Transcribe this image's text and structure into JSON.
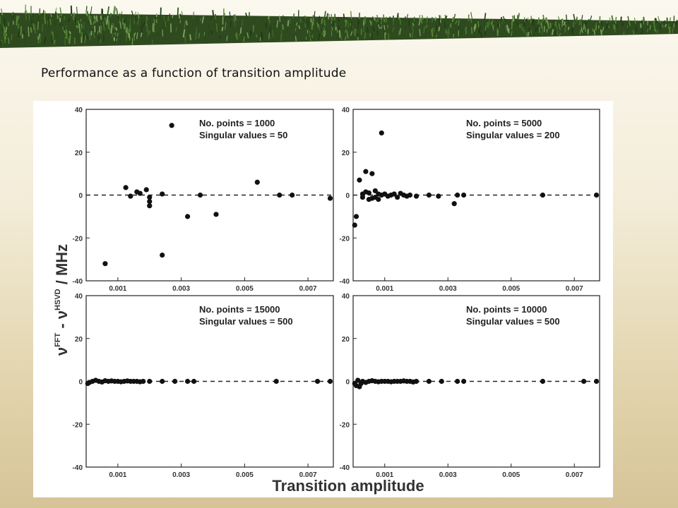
{
  "slide": {
    "title": "Performance as a function of transition amplitude",
    "banner_icon": "grass-border-decoration"
  },
  "chart_data": {
    "type": "scatter",
    "xlabel": "Transition amplitude",
    "ylabel_parts": {
      "nu1": "ν",
      "sup1": "FFT",
      "minus": " - ν",
      "sup2": "HSVD",
      "unit": " / MHz"
    },
    "xlim": [
      0,
      0.0078
    ],
    "ylim": [
      -40,
      40
    ],
    "x_ticks": [
      0.001,
      0.003,
      0.005,
      0.007
    ],
    "x_tick_labels": [
      "0.001",
      "0.003",
      "0.005",
      "0.007"
    ],
    "y_ticks": [
      -40,
      -20,
      0,
      20,
      40
    ],
    "y_tick_labels": [
      "-40",
      "-20",
      "0",
      "20",
      "40"
    ],
    "zero_line": "dashed",
    "marker_color": "#111111",
    "panels": [
      {
        "note1": "No. points = 1000",
        "note2": "Singular values = 50",
        "points": [
          [
            0.0006,
            -32
          ],
          [
            0.00125,
            3.5
          ],
          [
            0.0014,
            -0.5
          ],
          [
            0.0016,
            1.5
          ],
          [
            0.0017,
            0.8
          ],
          [
            0.0019,
            2.5
          ],
          [
            0.002,
            -1
          ],
          [
            0.002,
            -3
          ],
          [
            0.002,
            -5
          ],
          [
            0.0024,
            0.5
          ],
          [
            0.0024,
            -28
          ],
          [
            0.0027,
            32.5
          ],
          [
            0.0032,
            -10
          ],
          [
            0.0036,
            0
          ],
          [
            0.0041,
            -9
          ],
          [
            0.0054,
            6
          ],
          [
            0.0061,
            0
          ],
          [
            0.0065,
            0
          ],
          [
            0.0077,
            -1.5
          ]
        ]
      },
      {
        "note1": "No. points = 5000",
        "note2": "Singular values = 200",
        "points": [
          [
            5e-05,
            -14
          ],
          [
            0.0001,
            -10
          ],
          [
            0.0002,
            7
          ],
          [
            0.0003,
            0.5
          ],
          [
            0.0004,
            11
          ],
          [
            0.0005,
            -2
          ],
          [
            0.0006,
            10
          ],
          [
            0.0007,
            2
          ],
          [
            0.0008,
            -2
          ],
          [
            0.0009,
            29
          ],
          [
            0.0003,
            -1
          ],
          [
            0.0004,
            1.5
          ],
          [
            0.0005,
            1
          ],
          [
            0.0006,
            -1.5
          ],
          [
            0.0007,
            -1
          ],
          [
            0.0008,
            0.5
          ],
          [
            0.0009,
            0
          ],
          [
            0.001,
            0.5
          ],
          [
            0.0011,
            -0.5
          ],
          [
            0.0012,
            0
          ],
          [
            0.0013,
            0.5
          ],
          [
            0.0014,
            -1
          ],
          [
            0.0015,
            0.8
          ],
          [
            0.0016,
            0
          ],
          [
            0.0017,
            -0.5
          ],
          [
            0.0018,
            0
          ],
          [
            0.002,
            -0.5
          ],
          [
            0.0024,
            0
          ],
          [
            0.0027,
            -0.5
          ],
          [
            0.0032,
            -4
          ],
          [
            0.0033,
            0
          ],
          [
            0.0035,
            0
          ],
          [
            0.006,
            0
          ],
          [
            0.0077,
            0
          ]
        ]
      },
      {
        "note1": "No. points = 15000",
        "note2": "Singular values = 500",
        "points": [
          [
            5e-05,
            -1
          ],
          [
            0.0001,
            -0.5
          ],
          [
            0.0002,
            0
          ],
          [
            0.0003,
            0.5
          ],
          [
            0.0004,
            0
          ],
          [
            0.0005,
            -0.3
          ],
          [
            0.0006,
            0.3
          ],
          [
            0.0007,
            0
          ],
          [
            0.0008,
            0.2
          ],
          [
            0.0009,
            0
          ],
          [
            0.001,
            0
          ],
          [
            0.0011,
            -0.2
          ],
          [
            0.0012,
            0
          ],
          [
            0.0013,
            0.2
          ],
          [
            0.0014,
            0
          ],
          [
            0.0015,
            0
          ],
          [
            0.0016,
            0
          ],
          [
            0.0017,
            -0.2
          ],
          [
            0.0018,
            0
          ],
          [
            0.002,
            0
          ],
          [
            0.0024,
            0
          ],
          [
            0.0028,
            0
          ],
          [
            0.0032,
            0
          ],
          [
            0.0034,
            0
          ],
          [
            0.006,
            0
          ],
          [
            0.0073,
            0
          ],
          [
            0.0077,
            0
          ]
        ]
      },
      {
        "note1": "No. points = 10000",
        "note2": "Singular values = 500",
        "points": [
          [
            5e-05,
            -1
          ],
          [
            0.0001,
            -2
          ],
          [
            0.00015,
            0.5
          ],
          [
            0.0002,
            -2.5
          ],
          [
            0.00025,
            -1
          ],
          [
            0.0003,
            0
          ],
          [
            0.0004,
            -0.5
          ],
          [
            0.0005,
            0
          ],
          [
            0.0006,
            0.3
          ],
          [
            0.0007,
            0
          ],
          [
            0.0008,
            -0.2
          ],
          [
            0.0009,
            0
          ],
          [
            0.001,
            0
          ],
          [
            0.0011,
            0
          ],
          [
            0.0012,
            -0.2
          ],
          [
            0.0013,
            0
          ],
          [
            0.0014,
            0
          ],
          [
            0.0015,
            0
          ],
          [
            0.0016,
            0.2
          ],
          [
            0.0017,
            0
          ],
          [
            0.0018,
            0
          ],
          [
            0.0019,
            -0.3
          ],
          [
            0.002,
            0
          ],
          [
            0.0024,
            0
          ],
          [
            0.0028,
            0
          ],
          [
            0.0033,
            0
          ],
          [
            0.0035,
            0
          ],
          [
            0.006,
            0
          ],
          [
            0.0073,
            0
          ],
          [
            0.0077,
            0
          ]
        ]
      }
    ]
  }
}
